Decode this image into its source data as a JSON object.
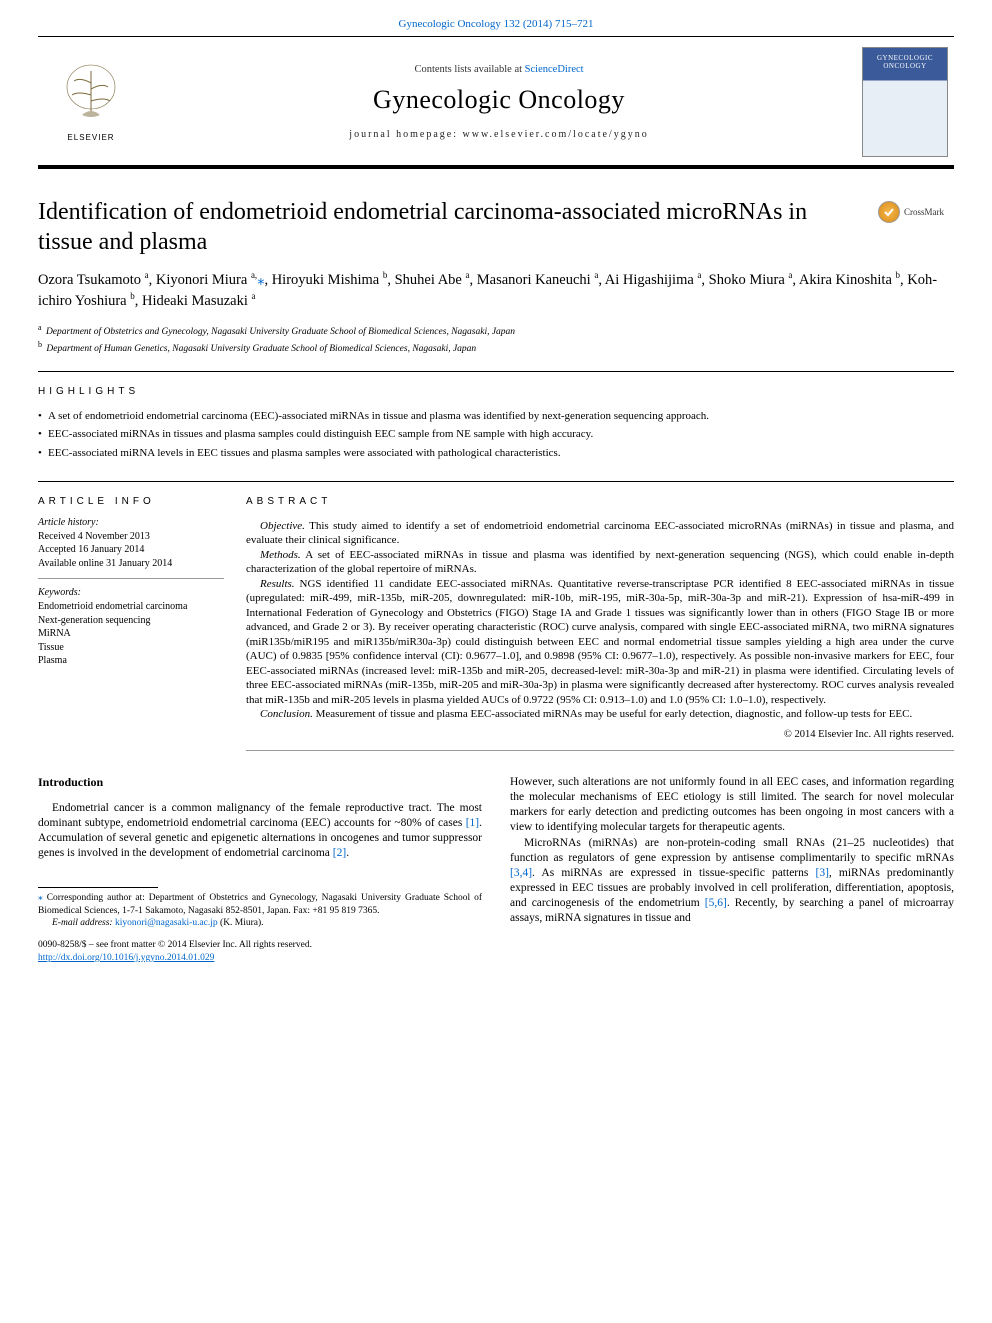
{
  "header": {
    "journal_ref": "Gynecologic Oncology 132 (2014) 715–721",
    "contents_prefix": "Contents lists available at ",
    "contents_link": "ScienceDirect",
    "journal_title": "Gynecologic Oncology",
    "homepage_prefix": "journal homepage: ",
    "homepage": "www.elsevier.com/locate/ygyno",
    "publisher": "ELSEVIER",
    "cover_label": "GYNECOLOGIC ONCOLOGY"
  },
  "crossmark": "CrossMark",
  "title": "Identification of endometrioid endometrial carcinoma-associated microRNAs in tissue and plasma",
  "authors": [
    {
      "name": "Ozora Tsukamoto",
      "affs": "a"
    },
    {
      "name": "Kiyonori Miura",
      "affs": "a,",
      "corr": true
    },
    {
      "name": "Hiroyuki Mishima",
      "affs": "b"
    },
    {
      "name": "Shuhei Abe",
      "affs": "a"
    },
    {
      "name": "Masanori Kaneuchi",
      "affs": "a"
    },
    {
      "name": "Ai Higashijima",
      "affs": "a"
    },
    {
      "name": "Shoko Miura",
      "affs": "a"
    },
    {
      "name": "Akira Kinoshita",
      "affs": "b"
    },
    {
      "name": "Koh-ichiro Yoshiura",
      "affs": "b"
    },
    {
      "name": "Hideaki Masuzaki",
      "affs": "a"
    }
  ],
  "affiliations": [
    {
      "key": "a",
      "text": "Department of Obstetrics and Gynecology, Nagasaki University Graduate School of Biomedical Sciences, Nagasaki, Japan"
    },
    {
      "key": "b",
      "text": "Department of Human Genetics, Nagasaki University Graduate School of Biomedical Sciences, Nagasaki, Japan"
    }
  ],
  "highlights_label": "HIGHLIGHTS",
  "highlights": [
    "A set of endometrioid endometrial carcinoma (EEC)-associated miRNAs in tissue and plasma was identified by next-generation sequencing approach.",
    "EEC-associated miRNAs in tissues and plasma samples could distinguish EEC sample from NE sample with high accuracy.",
    "EEC-associated miRNA levels in EEC tissues and plasma samples were associated with pathological characteristics."
  ],
  "article_info_label": "ARTICLE INFO",
  "history_label": "Article history:",
  "history": [
    "Received 4 November 2013",
    "Accepted 16 January 2014",
    "Available online 31 January 2014"
  ],
  "keywords_label": "Keywords:",
  "keywords": [
    "Endometrioid endometrial carcinoma",
    "Next-generation sequencing",
    "MiRNA",
    "Tissue",
    "Plasma"
  ],
  "abstract_label": "ABSTRACT",
  "abstract": {
    "objective_label": "Objective.",
    "objective": " This study aimed to identify a set of endometrioid endometrial carcinoma EEC-associated microRNAs (miRNAs) in tissue and plasma, and evaluate their clinical significance.",
    "methods_label": "Methods.",
    "methods": " A set of EEC-associated miRNAs in tissue and plasma was identified by next-generation sequencing (NGS), which could enable in-depth characterization of the global repertoire of miRNAs.",
    "results_label": "Results.",
    "results": " NGS identified 11 candidate EEC-associated miRNAs. Quantitative reverse-transcriptase PCR identified 8 EEC-associated miRNAs in tissue (upregulated: miR-499, miR-135b, miR-205, downregulated: miR-10b, miR-195, miR-30a-5p, miR-30a-3p and miR-21). Expression of hsa-miR-499 in International Federation of Gynecology and Obstetrics (FIGO) Stage IA and Grade 1 tissues was significantly lower than in others (FIGO Stage IB or more advanced, and Grade 2 or 3). By receiver operating characteristic (ROC) curve analysis, compared with single EEC-associated miRNA, two miRNA signatures (miR135b/miR195 and miR135b/miR30a-3p) could distinguish between EEC and normal endometrial tissue samples yielding a high area under the curve (AUC) of 0.9835 [95% confidence interval (CI): 0.9677–1.0], and 0.9898 (95% CI: 0.9677–1.0), respectively. As possible non-invasive markers for EEC, four EEC-associated miRNAs (increased level: miR-135b and miR-205, decreased-level: miR-30a-3p and miR-21) in plasma were identified. Circulating levels of three EEC-associated miRNAs (miR-135b, miR-205 and miR-30a-3p) in plasma were significantly decreased after hysterectomy. ROC curves analysis revealed that miR-135b and miR-205 levels in plasma yielded AUCs of 0.9722 (95% CI: 0.913–1.0) and 1.0 (95% CI: 1.0–1.0), respectively.",
    "conclusion_label": "Conclusion.",
    "conclusion": " Measurement of tissue and plasma EEC-associated miRNAs may be useful for early detection, diagnostic, and follow-up tests for EEC.",
    "copyright": "© 2014 Elsevier Inc. All rights reserved."
  },
  "body": {
    "intro_heading": "Introduction",
    "p1a": "Endometrial cancer is a common malignancy of the female reproductive tract. The most dominant subtype, endometrioid endometrial carcinoma (EEC) accounts for ~80% of cases ",
    "ref1": "[1]",
    "p1b": ". Accumulation of several genetic and epigenetic alternations in oncogenes and tumor suppressor genes is involved in the development of endometrial carcinoma ",
    "ref2": "[2]",
    "p1c": ".",
    "p2a": "However, such alterations are not uniformly found in all EEC cases, and information regarding the molecular mechanisms of EEC etiology is still limited. The search for novel molecular markers for early detection and predicting outcomes has been ongoing in most cancers with a view to identifying molecular targets for therapeutic agents.",
    "p3a": "MicroRNAs (miRNAs) are non-protein-coding small RNAs (21–25 nucleotides) that function as regulators of gene expression by antisense complimentarily to specific mRNAs ",
    "ref34": "[3,4]",
    "p3b": ". As miRNAs are expressed in tissue-specific patterns ",
    "ref3": "[3]",
    "p3c": ", miRNAs predominantly expressed in EEC tissues are probably involved in cell proliferation, differentiation, apoptosis, and carcinogenesis of the endometrium ",
    "ref56": "[5,6]",
    "p3d": ". Recently, by searching a panel of microarray assays, miRNA signatures in tissue and"
  },
  "footnote": {
    "corr": "Corresponding author at: Department of Obstetrics and Gynecology, Nagasaki University Graduate School of Biomedical Sciences, 1-7-1 Sakamoto, Nagasaki 852-8501, Japan. Fax: +81 95 819 7365.",
    "email_label": "E-mail address:",
    "email": "kiyonori@nagasaki-u.ac.jp",
    "email_who": " (K. Miura)."
  },
  "footer": {
    "line1": "0090-8258/$ – see front matter © 2014 Elsevier Inc. All rights reserved.",
    "doi": "http://dx.doi.org/10.1016/j.ygyno.2014.01.029"
  },
  "colors": {
    "link": "#0066cc",
    "text": "#000000",
    "cover_top": "#3a5a9a"
  }
}
